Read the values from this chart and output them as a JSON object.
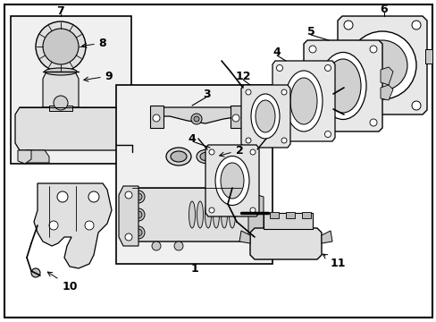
{
  "background_color": "#ffffff",
  "line_color": "#000000",
  "fill_light": "#e8e8e8",
  "fill_mid": "#cccccc",
  "fill_dark": "#aaaaaa",
  "figsize": [
    4.89,
    3.6
  ],
  "dpi": 100
}
